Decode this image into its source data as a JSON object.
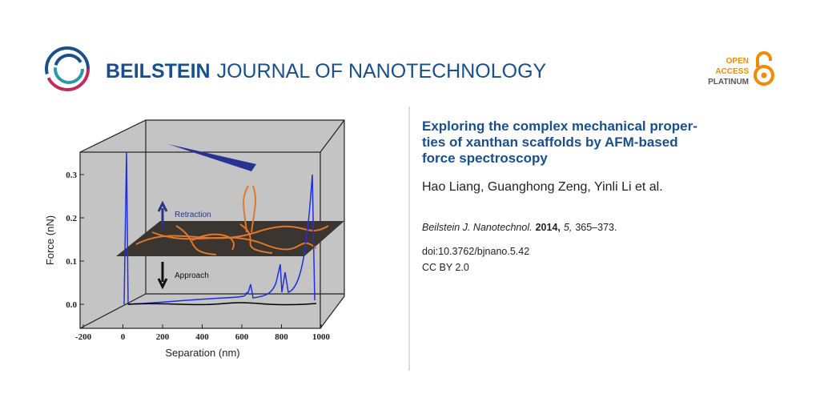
{
  "header": {
    "journal_bold": "BEILSTEIN",
    "journal_rest": "JOURNAL OF NANOTECHNOLOGY",
    "badge": [
      "OPEN",
      "ACCESS",
      "PLATINUM"
    ]
  },
  "figure": {
    "y_label": "Force (nN)",
    "x_label": "Separation (nm)",
    "x_ticks": [
      "-200",
      "0",
      "200",
      "400",
      "600",
      "800",
      "1000"
    ],
    "y_ticks": [
      "0.3",
      "0.2",
      "0.1",
      "0.0"
    ],
    "retraction": "Retraction",
    "approach": "Approach"
  },
  "article": {
    "title_lines": [
      "Exploring the complex mechanical proper-",
      "ties of xanthan scaffolds by AFM-based",
      "force spectroscopy"
    ],
    "authors": "Hao Liang, Guanghong Zeng, Yinli Li et al.",
    "citation": {
      "journal": "Beilstein J. Nanotechnol.",
      "year": "2014,",
      "volume": "5,",
      "pages": "365–373."
    },
    "doi": "doi:10.3762/bjnano.5.42",
    "license": "CC BY 2.0"
  }
}
